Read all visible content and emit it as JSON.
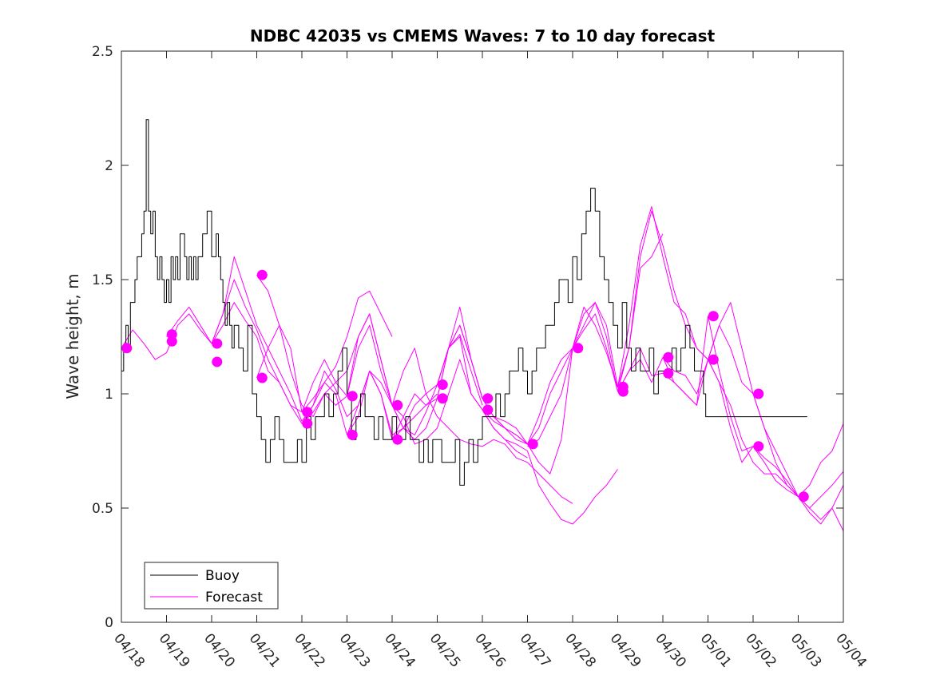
{
  "chart_data": {
    "type": "line",
    "title": "NDBC 42035 vs CMEMS Waves: 7 to 10 day forecast",
    "xlabel": "",
    "ylabel": "Wave height, m",
    "xlim": [
      0,
      16
    ],
    "ylim": [
      0,
      2.5
    ],
    "x_ticks": [
      0,
      1,
      2,
      3,
      4,
      5,
      6,
      7,
      8,
      9,
      10,
      11,
      12,
      13,
      14,
      15,
      16
    ],
    "x_tick_labels": [
      "04/18",
      "04/19",
      "04/20",
      "04/21",
      "04/22",
      "04/23",
      "04/24",
      "04/25",
      "04/26",
      "04/27",
      "04/28",
      "04/29",
      "04/30",
      "05/01",
      "05/02",
      "05/03",
      "05/04"
    ],
    "y_ticks": [
      0,
      0.5,
      1,
      1.5,
      2,
      2.5
    ],
    "y_tick_labels": [
      "0",
      "0.5",
      "1",
      "1.5",
      "2",
      "2.5"
    ],
    "grid": false,
    "legend": {
      "position": "bottom-left",
      "entries": [
        {
          "label": "Buoy",
          "color": "#000000"
        },
        {
          "label": "Forecast",
          "color": "#ff00ff"
        }
      ]
    },
    "colors": {
      "buoy": "#000000",
      "forecast": "#ff00ff"
    },
    "series": [
      {
        "name": "Buoy",
        "x": [
          0.0,
          0.05,
          0.1,
          0.15,
          0.2,
          0.3,
          0.35,
          0.45,
          0.5,
          0.55,
          0.6,
          0.65,
          0.7,
          0.75,
          0.8,
          0.85,
          0.9,
          0.95,
          1.0,
          1.05,
          1.1,
          1.15,
          1.2,
          1.25,
          1.3,
          1.4,
          1.45,
          1.5,
          1.55,
          1.6,
          1.65,
          1.7,
          1.8,
          1.9,
          2.0,
          2.1,
          2.15,
          2.2,
          2.25,
          2.3,
          2.35,
          2.4,
          2.45,
          2.5,
          2.6,
          2.7,
          2.8,
          2.9,
          3.0,
          3.1,
          3.2,
          3.3,
          3.4,
          3.5,
          3.6,
          3.7,
          3.8,
          3.9,
          4.0,
          4.1,
          4.2,
          4.25,
          4.3,
          4.4,
          4.5,
          4.6,
          4.7,
          4.8,
          4.9,
          5.0,
          5.1,
          5.2,
          5.3,
          5.4,
          5.5,
          5.6,
          5.7,
          5.8,
          5.9,
          6.0,
          6.1,
          6.2,
          6.3,
          6.4,
          6.5,
          6.6,
          6.7,
          6.8,
          6.9,
          7.0,
          7.1,
          7.2,
          7.3,
          7.4,
          7.5,
          7.6,
          7.7,
          7.8,
          7.9,
          8.0,
          8.1,
          8.2,
          8.3,
          8.4,
          8.5,
          8.6,
          8.7,
          8.8,
          8.9,
          9.0,
          9.1,
          9.2,
          9.3,
          9.4,
          9.5,
          9.6,
          9.7,
          9.8,
          9.9,
          10.0,
          10.1,
          10.2,
          10.3,
          10.4,
          10.5,
          10.6,
          10.7,
          10.8,
          10.9,
          11.0,
          11.1,
          11.2,
          11.3,
          11.4,
          11.5,
          11.6,
          11.7,
          11.8,
          11.9,
          12.0,
          12.1,
          12.2,
          12.3,
          12.4,
          12.5,
          12.6,
          12.7,
          12.8,
          12.9,
          12.95,
          13.0,
          13.05,
          13.1,
          13.2,
          13.25,
          13.3,
          13.4,
          13.5,
          13.6,
          13.7,
          13.8,
          13.9,
          14.0,
          14.1,
          14.2,
          14.3,
          14.4,
          14.5,
          14.6,
          14.7,
          14.8,
          14.9,
          15.0,
          15.1,
          15.2
        ],
        "y": [
          1.1,
          1.2,
          1.3,
          1.2,
          1.4,
          1.5,
          1.6,
          1.7,
          1.8,
          2.2,
          1.8,
          1.7,
          1.8,
          1.6,
          1.5,
          1.6,
          1.5,
          1.4,
          1.5,
          1.4,
          1.6,
          1.5,
          1.6,
          1.5,
          1.7,
          1.6,
          1.5,
          1.6,
          1.5,
          1.6,
          1.5,
          1.6,
          1.7,
          1.8,
          1.6,
          1.7,
          1.6,
          1.5,
          1.4,
          1.3,
          1.4,
          1.3,
          1.2,
          1.3,
          1.2,
          1.1,
          1.3,
          1.0,
          0.9,
          0.8,
          0.7,
          0.8,
          0.9,
          0.8,
          0.7,
          0.7,
          0.7,
          0.8,
          0.7,
          0.9,
          0.8,
          0.8,
          0.9,
          0.9,
          1.0,
          0.9,
          1.0,
          1.1,
          1.2,
          1.0,
          0.8,
          0.9,
          1.0,
          0.9,
          0.9,
          0.8,
          0.9,
          0.8,
          0.8,
          0.9,
          0.8,
          0.8,
          0.9,
          0.8,
          0.8,
          0.7,
          0.8,
          0.7,
          0.8,
          0.8,
          0.7,
          0.7,
          0.7,
          0.8,
          0.6,
          0.7,
          0.8,
          0.7,
          0.8,
          0.9,
          0.9,
          0.9,
          1.0,
          0.9,
          1.0,
          1.1,
          1.1,
          1.2,
          1.1,
          1.0,
          1.1,
          1.2,
          1.2,
          1.3,
          1.3,
          1.4,
          1.5,
          1.5,
          1.4,
          1.6,
          1.5,
          1.7,
          1.8,
          1.9,
          1.8,
          1.6,
          1.5,
          1.4,
          1.3,
          1.2,
          1.4,
          1.2,
          1.1,
          1.2,
          1.1,
          1.1,
          1.2,
          1.0,
          1.1,
          1.1,
          1.1,
          1.2,
          1.1,
          1.2,
          1.3,
          1.2,
          1.1,
          1.1,
          1.0,
          0.9,
          0.9,
          0.9,
          0.9,
          0.9,
          0.9,
          0.9,
          0.9,
          0.9,
          0.9,
          0.9,
          0.9,
          0.9,
          0.9,
          0.9,
          0.9,
          0.9,
          0.9,
          0.9,
          0.9,
          0.9,
          0.9,
          0.9,
          0.9,
          0.9,
          0.9
        ]
      },
      {
        "name": "Forecast",
        "x": [
          0.0,
          0.25,
          0.5,
          0.75,
          1.0,
          1.25,
          1.5,
          1.75,
          2.0,
          2.25,
          2.5,
          2.75,
          3.0,
          3.25,
          3.5,
          3.75,
          4.0,
          4.25,
          4.5,
          4.75,
          5.0,
          5.25,
          5.5,
          5.75,
          6.0
        ],
        "y": [
          1.2,
          1.28,
          1.22,
          1.15,
          1.18,
          1.3,
          1.35,
          1.28,
          1.22,
          1.3,
          1.4,
          1.32,
          1.25,
          1.1,
          1.05,
          0.95,
          0.92,
          0.98,
          1.05,
          1.12,
          1.25,
          1.42,
          1.45,
          1.35,
          1.25
        ]
      },
      {
        "name": "Forecast",
        "x": [
          1.0,
          1.25,
          1.5,
          1.75,
          2.0,
          2.25,
          2.5,
          2.75,
          3.0,
          3.25,
          3.5,
          3.75,
          4.0,
          4.25,
          4.5,
          4.75,
          5.0,
          5.25,
          5.5,
          5.75,
          6.0,
          6.25,
          6.5,
          6.75,
          7.0
        ],
        "y": [
          1.25,
          1.32,
          1.38,
          1.3,
          1.22,
          1.35,
          1.6,
          1.45,
          1.3,
          1.2,
          1.1,
          1.0,
          0.88,
          0.95,
          1.1,
          1.02,
          0.9,
          0.95,
          1.1,
          1.0,
          0.82,
          0.85,
          0.9,
          0.95,
          1.0
        ]
      },
      {
        "name": "Forecast",
        "x": [
          2.0,
          2.25,
          2.5,
          2.75,
          3.0,
          3.25,
          3.5,
          3.75,
          4.0,
          4.25,
          4.5,
          4.75,
          5.0,
          5.25,
          5.5,
          5.75,
          6.0,
          6.25,
          6.5,
          6.75,
          7.0,
          7.25,
          7.5,
          7.75,
          8.0
        ],
        "y": [
          1.22,
          1.35,
          1.5,
          1.38,
          1.28,
          1.15,
          1.05,
          0.95,
          0.87,
          0.92,
          1.0,
          0.95,
          0.99,
          1.25,
          1.35,
          1.15,
          0.95,
          0.85,
          0.82,
          0.92,
          1.04,
          1.2,
          1.26,
          1.1,
          0.95
        ]
      },
      {
        "name": "Forecast",
        "x": [
          3.0,
          3.25,
          3.5,
          3.75,
          4.0,
          4.25,
          4.5,
          4.75,
          5.0,
          5.25,
          5.5,
          5.75,
          6.0,
          6.25,
          6.5,
          6.75,
          7.0,
          7.25,
          7.5,
          7.75,
          8.0,
          8.25,
          8.5,
          8.75,
          9.0
        ],
        "y": [
          1.07,
          1.2,
          1.3,
          1.2,
          0.92,
          1.05,
          1.15,
          1.05,
          0.99,
          1.2,
          1.3,
          1.1,
          0.95,
          0.85,
          0.8,
          0.85,
          0.98,
          1.2,
          1.3,
          1.15,
          0.98,
          0.9,
          0.85,
          0.82,
          0.78
        ]
      },
      {
        "name": "Forecast",
        "x": [
          3.0,
          3.25,
          3.5,
          3.75,
          4.0,
          4.25,
          4.5,
          4.75,
          5.0,
          5.25,
          5.5,
          5.75,
          6.0,
          6.25,
          6.5,
          6.75,
          7.0,
          7.25,
          7.5,
          7.75,
          8.0,
          8.25,
          8.5,
          8.75,
          9.0
        ],
        "y": [
          1.52,
          1.45,
          1.3,
          1.1,
          0.95,
          0.9,
          1.0,
          1.05,
          1.1,
          1.25,
          1.35,
          1.15,
          0.95,
          0.9,
          0.78,
          0.8,
          0.85,
          1.0,
          1.15,
          1.0,
          0.93,
          0.85,
          0.8,
          0.75,
          0.72
        ]
      },
      {
        "name": "Forecast",
        "x": [
          4.0,
          4.25,
          4.5,
          4.75,
          5.0,
          5.25,
          5.5,
          5.75,
          6.0,
          6.25,
          6.5,
          6.75,
          7.0,
          7.25,
          7.5,
          7.75,
          8.0,
          8.25,
          8.5,
          8.75,
          9.0,
          9.25,
          9.5,
          9.75,
          10.0
        ],
        "y": [
          0.87,
          0.95,
          1.05,
          1.0,
          0.82,
          0.9,
          1.1,
          1.05,
          0.95,
          1.1,
          1.2,
          1.0,
          0.9,
          0.85,
          0.8,
          0.78,
          0.77,
          0.8,
          0.78,
          0.72,
          0.7,
          0.65,
          0.6,
          0.55,
          0.52
        ]
      },
      {
        "name": "Forecast",
        "x": [
          5.0,
          5.25,
          5.5,
          5.75,
          6.0,
          6.25,
          6.5,
          6.75,
          7.0,
          7.25,
          7.5,
          7.75,
          8.0,
          8.25,
          8.5,
          8.75,
          9.0,
          9.25,
          9.5,
          9.75,
          10.0,
          10.25,
          10.5,
          10.75,
          11.0
        ],
        "y": [
          0.82,
          0.95,
          1.1,
          1.0,
          0.8,
          0.85,
          0.95,
          1.0,
          1.04,
          1.2,
          1.25,
          1.0,
          0.93,
          0.85,
          0.8,
          0.78,
          0.75,
          0.6,
          0.52,
          0.45,
          0.43,
          0.48,
          0.55,
          0.6,
          0.67
        ]
      },
      {
        "name": "Forecast",
        "x": [
          6.0,
          6.25,
          6.5,
          6.75,
          7.0,
          7.25,
          7.5,
          7.75,
          8.0,
          8.25,
          8.5,
          8.75,
          9.0,
          9.25,
          9.5,
          9.75,
          10.0,
          10.25,
          10.5,
          10.75,
          11.0,
          11.25,
          11.5,
          11.75,
          12.0
        ],
        "y": [
          0.8,
          0.9,
          1.0,
          0.95,
          0.98,
          1.2,
          1.38,
          1.15,
          0.98,
          0.9,
          0.85,
          0.82,
          0.78,
          0.7,
          0.65,
          0.8,
          1.2,
          1.38,
          1.3,
          1.18,
          1.03,
          1.2,
          1.55,
          1.6,
          1.7
        ]
      },
      {
        "name": "Forecast",
        "x": [
          7.0,
          7.25,
          7.5,
          7.75,
          8.0,
          8.25,
          8.5,
          8.75,
          9.0,
          9.25,
          9.5,
          9.75,
          10.0,
          10.25,
          10.5,
          10.75,
          11.0,
          11.25,
          11.5,
          11.75,
          12.0,
          12.25,
          12.5,
          12.75,
          13.0
        ],
        "y": [
          1.04,
          1.2,
          1.3,
          1.15,
          0.98,
          0.9,
          0.88,
          0.85,
          0.78,
          0.85,
          1.0,
          1.1,
          1.2,
          1.35,
          1.4,
          1.25,
          1.01,
          1.2,
          1.6,
          1.8,
          1.65,
          1.45,
          1.3,
          1.2,
          1.15
        ]
      },
      {
        "name": "Forecast",
        "x": [
          8.0,
          8.25,
          8.5,
          8.75,
          9.0,
          9.25,
          9.5,
          9.75,
          10.0,
          10.25,
          10.5,
          10.75,
          11.0,
          11.25,
          11.5,
          11.75,
          12.0,
          12.25,
          12.5,
          12.75,
          13.0,
          13.25,
          13.5,
          13.75,
          14.0
        ],
        "y": [
          0.93,
          0.88,
          0.85,
          0.8,
          0.78,
          0.9,
          1.05,
          1.15,
          1.2,
          1.3,
          1.4,
          1.3,
          1.03,
          1.3,
          1.65,
          1.82,
          1.6,
          1.4,
          1.35,
          1.2,
          1.15,
          1.3,
          1.4,
          1.2,
          1.0
        ]
      },
      {
        "name": "Forecast",
        "x": [
          9.0,
          9.25,
          9.5,
          9.75,
          10.0,
          10.25,
          10.5,
          10.75,
          11.0,
          11.25,
          11.5,
          11.75,
          12.0,
          12.25,
          12.5,
          12.75,
          13.0,
          13.25,
          13.5,
          13.75,
          14.0,
          14.25,
          14.5,
          14.75,
          15.0
        ],
        "y": [
          0.77,
          0.8,
          0.9,
          1.0,
          1.2,
          1.28,
          1.35,
          1.2,
          1.01,
          1.1,
          1.15,
          1.05,
          1.16,
          1.1,
          1.08,
          1.0,
          1.15,
          1.3,
          1.2,
          1.05,
          1.0,
          0.85,
          0.75,
          0.65,
          0.55
        ]
      },
      {
        "name": "Forecast",
        "x": [
          11.0,
          11.25,
          11.5,
          11.75,
          12.0,
          12.25,
          12.5,
          12.75,
          13.0,
          13.25,
          13.5,
          13.75,
          14.0,
          14.25,
          14.5,
          14.75,
          15.0,
          15.25,
          15.5,
          15.75,
          16.0
        ],
        "y": [
          1.01,
          1.1,
          1.2,
          1.08,
          1.09,
          1.05,
          1.0,
          0.95,
          1.15,
          1.05,
          0.85,
          0.7,
          0.77,
          0.7,
          0.62,
          0.58,
          0.55,
          0.6,
          0.7,
          0.75,
          0.87
        ]
      },
      {
        "name": "Forecast",
        "x": [
          12.0,
          12.25,
          12.5,
          12.75,
          13.0,
          13.25,
          13.5,
          13.75,
          14.0,
          14.25,
          14.5,
          14.75,
          15.0,
          15.25,
          15.5,
          15.75,
          16.0
        ],
        "y": [
          1.16,
          1.05,
          1.0,
          0.95,
          1.34,
          1.1,
          0.9,
          0.75,
          0.77,
          0.72,
          0.68,
          0.62,
          0.55,
          0.5,
          0.55,
          0.6,
          0.66
        ]
      },
      {
        "name": "Forecast",
        "x": [
          13.0,
          13.25,
          13.5,
          13.75,
          14.0,
          14.25,
          14.5,
          14.75,
          15.0,
          15.25,
          15.5,
          15.75,
          16.0
        ],
        "y": [
          1.15,
          1.05,
          0.95,
          0.8,
          0.7,
          0.65,
          0.65,
          0.6,
          0.55,
          0.5,
          0.45,
          0.5,
          0.6
        ]
      },
      {
        "name": "Forecast",
        "x": [
          14.0,
          14.25,
          14.5,
          14.75,
          15.0,
          15.25,
          15.5,
          15.75,
          16.0
        ],
        "y": [
          1.0,
          0.85,
          0.7,
          0.6,
          0.55,
          0.48,
          0.43,
          0.5,
          0.4
        ]
      }
    ],
    "forecast_markers": {
      "x": [
        0.12,
        1.12,
        1.12,
        2.12,
        2.12,
        3.12,
        3.12,
        4.12,
        4.12,
        5.12,
        5.12,
        6.12,
        6.12,
        7.12,
        7.12,
        8.12,
        8.12,
        9.12,
        10.12,
        11.12,
        11.12,
        12.12,
        12.12,
        13.12,
        13.12,
        14.12,
        14.12,
        15.12
      ],
      "y": [
        1.2,
        1.26,
        1.23,
        1.22,
        1.14,
        1.52,
        1.07,
        0.92,
        0.87,
        0.99,
        0.82,
        0.95,
        0.8,
        1.04,
        0.98,
        0.98,
        0.93,
        0.78,
        1.2,
        1.03,
        1.01,
        1.16,
        1.09,
        1.34,
        1.15,
        1.0,
        0.77,
        0.55
      ]
    }
  }
}
